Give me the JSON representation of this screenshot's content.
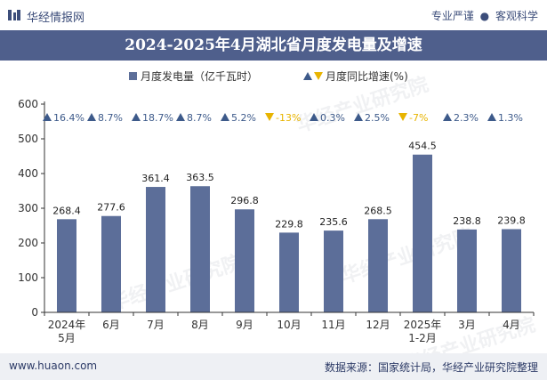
{
  "header": {
    "brand": "华经情报网",
    "tagline_left": "专业严谨",
    "tagline_right": "客观科学"
  },
  "footer": {
    "website": "www.huaon.com",
    "source": "数据来源：国家统计局，华经产业研究院整理"
  },
  "watermark": "华经产业研究院",
  "colors": {
    "bar": "#5c6e99",
    "title_bg": "#4f5f8c",
    "up": "#3d5a8a",
    "down": "#e8b400"
  },
  "chart_data": {
    "type": "bar",
    "title": "2024-2025年4月湖北省月度发电量及增速",
    "legend": {
      "bar_label": "月度发电量（亿千瓦时）",
      "growth_label": "月度同比增速(%)",
      "placement": "top-center"
    },
    "categories": [
      [
        "2024年",
        "5月"
      ],
      [
        "6月"
      ],
      [
        "7月"
      ],
      [
        "8月"
      ],
      [
        "9月"
      ],
      [
        "10月"
      ],
      [
        "11月"
      ],
      [
        "12月"
      ],
      [
        "2025年",
        "1-2月"
      ],
      [
        "3月"
      ],
      [
        "4月"
      ]
    ],
    "series": [
      {
        "values": [
          268.4,
          277.6,
          361.4,
          363.5,
          296.8,
          229.8,
          235.6,
          268.5,
          454.5,
          238.8,
          239.8
        ]
      }
    ],
    "growth": [
      "16.4%",
      "8.7%",
      "18.7%",
      "8.7%",
      "5.2%",
      "-13%",
      "0.3%",
      "2.5%",
      "-7%",
      "2.3%",
      "1.3%"
    ],
    "growth_direction": [
      "up",
      "up",
      "up",
      "up",
      "up",
      "down",
      "up",
      "up",
      "down",
      "up",
      "up"
    ],
    "ylim": [
      0,
      600
    ],
    "yticks": [
      0,
      100,
      200,
      300,
      400,
      500,
      600
    ],
    "grid": false
  }
}
